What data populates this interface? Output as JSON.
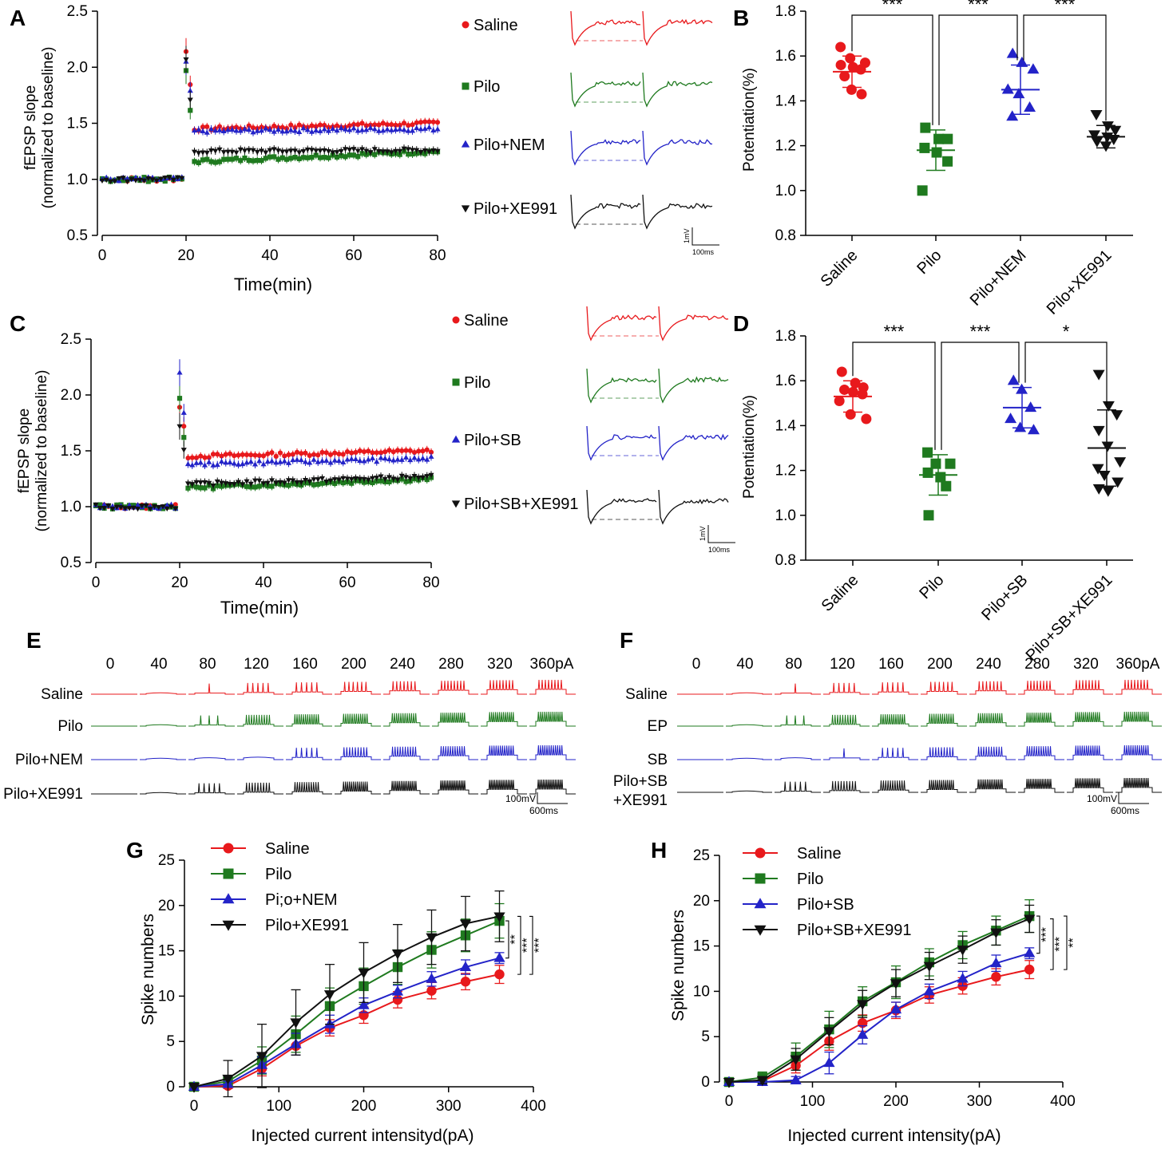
{
  "colors": {
    "saline": "#e8191c",
    "pilo": "#1f7a1f",
    "blue": "#2323c8",
    "black": "#111111",
    "dash_gray": "#888888"
  },
  "panel_labels": {
    "A": "A",
    "B": "B",
    "C": "C",
    "D": "D",
    "E": "E",
    "F": "F",
    "G": "G",
    "H": "H"
  },
  "scale_bars": {
    "ltp_v": "1mV",
    "ltp_t": "100ms",
    "spike_v": "100mV",
    "spike_t": "600ms"
  },
  "panel_E": {
    "currents": [
      "0",
      "40",
      "80",
      "120",
      "160",
      "200",
      "240",
      "280",
      "320",
      "360pA"
    ],
    "rows": [
      {
        "label": "Saline",
        "spikes": [
          0,
          0,
          1,
          5,
          5,
          6,
          7,
          8,
          8,
          8
        ]
      },
      {
        "label": "Pilo",
        "spikes": [
          0,
          0,
          3,
          10,
          12,
          12,
          12,
          13,
          13,
          13
        ]
      },
      {
        "label": "Pilo+NEM",
        "spikes": [
          0,
          0,
          0,
          0,
          5,
          9,
          10,
          11,
          12,
          12
        ]
      },
      {
        "label": "Pilo+XE991",
        "spikes": [
          0,
          0,
          5,
          9,
          11,
          13,
          14,
          15,
          15,
          15
        ]
      }
    ]
  },
  "panel_F": {
    "currents": [
      "0",
      "40",
      "80",
      "120",
      "160",
      "200",
      "240",
      "280",
      "320",
      "360pA"
    ],
    "rows": [
      {
        "label": "Saline",
        "spikes": [
          0,
          0,
          1,
          5,
          5,
          6,
          7,
          8,
          8,
          8
        ]
      },
      {
        "label": "EP",
        "spikes": [
          0,
          0,
          3,
          10,
          12,
          12,
          12,
          13,
          13,
          13
        ]
      },
      {
        "label": "SB",
        "spikes": [
          0,
          0,
          0,
          1,
          5,
          9,
          10,
          11,
          12,
          12
        ]
      },
      {
        "label": "Pilo+SB",
        "label2": "+XE991",
        "spikes": [
          0,
          0,
          5,
          9,
          11,
          13,
          14,
          15,
          15,
          15
        ]
      }
    ]
  },
  "chart_data": [
    {
      "id": "A",
      "type": "scatter",
      "xlabel": "Time(min)",
      "ylabel": "fEPSP slope",
      "ylabel2": "(normalized to baseline)",
      "xlim": [
        0,
        80
      ],
      "ylim": [
        0.5,
        2.5
      ],
      "xticks": [
        "0",
        "20",
        "40",
        "60",
        "80"
      ],
      "yticks": [
        "0.5",
        "1.0",
        "1.5",
        "2.0",
        "2.5"
      ],
      "series": [
        {
          "name": "Saline",
          "baseline": 1.0,
          "peak": 2.14,
          "post": 1.45,
          "end": 1.5
        },
        {
          "name": "Pilo",
          "baseline": 1.0,
          "peak": 1.97,
          "post": 1.16,
          "end": 1.25
        },
        {
          "name": "Pilo+NEM",
          "baseline": 1.0,
          "peak": 2.05,
          "post": 1.43,
          "end": 1.45
        },
        {
          "name": "Pilo+XE991",
          "baseline": 1.0,
          "peak": 2.07,
          "post": 1.25,
          "end": 1.26
        }
      ],
      "legend": [
        "Saline",
        "Pilo",
        "Pilo+NEM",
        "Pilo+XE991"
      ]
    },
    {
      "id": "B",
      "type": "scatter",
      "ylabel": "Potentiation(%)",
      "ylim": [
        0.8,
        1.8
      ],
      "yticks": [
        "0.8",
        "1.0",
        "1.2",
        "1.4",
        "1.6",
        "1.8"
      ],
      "categories": [
        "Saline",
        "Pilo",
        "Pilo+NEM",
        "Pilo+XE991"
      ],
      "means": [
        1.53,
        1.18,
        1.45,
        1.24
      ],
      "sd": [
        0.07,
        0.09,
        0.11,
        0.05
      ],
      "points": [
        [
          1.64,
          1.59,
          1.57,
          1.56,
          1.55,
          1.54,
          1.51,
          1.45,
          1.43
        ],
        [
          1.28,
          1.23,
          1.23,
          1.19,
          1.17,
          1.13,
          1.0
        ],
        [
          1.61,
          1.57,
          1.54,
          1.45,
          1.43,
          1.37,
          1.33
        ],
        [
          1.34,
          1.29,
          1.27,
          1.25,
          1.24,
          1.23,
          1.22,
          1.2
        ]
      ],
      "significance": [
        "***",
        "***",
        "***"
      ]
    },
    {
      "id": "C",
      "type": "scatter",
      "xlabel": "Time(min)",
      "ylabel": "fEPSP slope",
      "ylabel2": "(normalized to baseline)",
      "xlim": [
        0,
        80
      ],
      "ylim": [
        0.5,
        2.5
      ],
      "xticks": [
        "0",
        "20",
        "40",
        "60",
        "80"
      ],
      "yticks": [
        "0.5",
        "1.0",
        "1.5",
        "2.0",
        "2.5"
      ],
      "series": [
        {
          "name": "Saline",
          "baseline": 1.0,
          "peak": 1.89,
          "post": 1.45,
          "end": 1.5
        },
        {
          "name": "Pilo",
          "baseline": 1.0,
          "peak": 1.97,
          "post": 1.17,
          "end": 1.25
        },
        {
          "name": "Pilo+SB",
          "baseline": 1.0,
          "peak": 2.2,
          "post": 1.38,
          "end": 1.43
        },
        {
          "name": "Pilo+SB+XE991",
          "baseline": 1.0,
          "peak": 1.72,
          "post": 1.2,
          "end": 1.27
        }
      ],
      "legend": [
        "Saline",
        "Pilo",
        "Pilo+SB",
        "Pilo+SB+XE991"
      ]
    },
    {
      "id": "D",
      "type": "scatter",
      "ylabel": "Potentiation(%)",
      "ylim": [
        0.8,
        1.8
      ],
      "yticks": [
        "0.8",
        "1.0",
        "1.2",
        "1.4",
        "1.6",
        "1.8"
      ],
      "categories": [
        "Saline",
        "Pilo",
        "Pilo+SB",
        "Pilo+SB+XE991"
      ],
      "means": [
        1.53,
        1.18,
        1.48,
        1.3
      ],
      "sd": [
        0.07,
        0.09,
        0.09,
        0.17
      ],
      "points": [
        [
          1.64,
          1.59,
          1.57,
          1.56,
          1.55,
          1.54,
          1.51,
          1.45,
          1.43
        ],
        [
          1.28,
          1.23,
          1.23,
          1.19,
          1.17,
          1.13,
          1.0
        ],
        [
          1.6,
          1.56,
          1.48,
          1.43,
          1.39,
          1.38
        ],
        [
          1.63,
          1.49,
          1.45,
          1.38,
          1.31,
          1.24,
          1.21,
          1.18,
          1.15,
          1.12,
          1.11
        ]
      ],
      "significance": [
        "***",
        "***",
        "*"
      ]
    },
    {
      "id": "G",
      "type": "line",
      "xlabel": "Injected current intensityd(pA)",
      "ylabel": "Spike numbers",
      "xlim": [
        0,
        400
      ],
      "ylim": [
        0,
        25
      ],
      "xticks": [
        "0",
        "100",
        "200",
        "300",
        "400"
      ],
      "yticks": [
        "0",
        "5",
        "10",
        "15",
        "20",
        "25"
      ],
      "x": [
        0,
        40,
        80,
        120,
        160,
        200,
        240,
        280,
        320,
        360
      ],
      "series": [
        {
          "name": "Saline",
          "values": [
            0,
            0.1,
            2,
            4.5,
            6.5,
            7.9,
            9.6,
            10.6,
            11.6,
            12.4
          ],
          "err": [
            0,
            0.3,
            0.8,
            1,
            0.9,
            0.9,
            0.9,
            0.9,
            0.9,
            1
          ]
        },
        {
          "name": "Pilo",
          "values": [
            0,
            0.6,
            2.9,
            5.8,
            8.9,
            11.1,
            13.2,
            15.1,
            16.7,
            18.3
          ],
          "err": [
            0,
            0.5,
            1.5,
            2,
            2,
            2,
            1.9,
            2,
            1.8,
            1.9
          ]
        },
        {
          "name": "Pi;o+NEM",
          "values": [
            0,
            0.3,
            2.4,
            4.7,
            6.9,
            9.0,
            10.5,
            11.9,
            13.2,
            14.2
          ],
          "err": [
            0,
            0.3,
            0.9,
            1.2,
            1,
            0.8,
            0.7,
            0.8,
            0.8,
            0.6
          ]
        },
        {
          "name": "Pilo+XE991",
          "values": [
            0,
            0.9,
            3.4,
            7.1,
            10.2,
            12.6,
            14.7,
            16.5,
            18,
            18.8
          ],
          "err": [
            0,
            2,
            3.5,
            3.6,
            3.3,
            3.3,
            3.2,
            3,
            3,
            2.8
          ]
        }
      ],
      "significance": [
        "**",
        "***",
        "***"
      ]
    },
    {
      "id": "H",
      "type": "line",
      "xlabel": "Injected current intensity(pA)",
      "ylabel": "Spike numbers",
      "xlim": [
        0,
        400
      ],
      "ylim": [
        0,
        25
      ],
      "xticks": [
        "0",
        "100",
        "200",
        "300",
        "400"
      ],
      "yticks": [
        "0",
        "5",
        "10",
        "15",
        "20",
        "25"
      ],
      "x": [
        0,
        40,
        80,
        120,
        160,
        200,
        240,
        280,
        320,
        360
      ],
      "series": [
        {
          "name": "Saline",
          "values": [
            0,
            0.1,
            1.8,
            4.5,
            6.5,
            7.9,
            9.6,
            10.6,
            11.6,
            12.4
          ],
          "err": [
            0,
            0.3,
            0.8,
            1,
            0.9,
            0.9,
            0.9,
            0.9,
            0.9,
            1
          ]
        },
        {
          "name": "Pilo",
          "values": [
            0,
            0.5,
            2.8,
            5.8,
            8.9,
            11.0,
            13.2,
            15.1,
            16.7,
            18.3
          ],
          "err": [
            0,
            0.6,
            1.5,
            2,
            1.6,
            1.8,
            1.5,
            1.5,
            1.6,
            1.8
          ]
        },
        {
          "name": "Pilo+SB",
          "values": [
            0,
            0,
            0.2,
            2.1,
            5.2,
            8.0,
            10.0,
            11.4,
            13.1,
            14.2
          ],
          "err": [
            0,
            0.2,
            0.4,
            1.2,
            1,
            0.8,
            0.8,
            0.8,
            0.9,
            0.6
          ]
        },
        {
          "name": "Pilo+SB+XE991",
          "values": [
            0,
            0.2,
            2.5,
            5.6,
            8.6,
            10.9,
            12.8,
            14.6,
            16.5,
            18.0
          ],
          "err": [
            0,
            0.4,
            1.2,
            1.5,
            1.5,
            1.5,
            1.5,
            1.5,
            1.4,
            1.5
          ]
        }
      ],
      "significance": [
        "***",
        "***",
        "**"
      ]
    }
  ]
}
